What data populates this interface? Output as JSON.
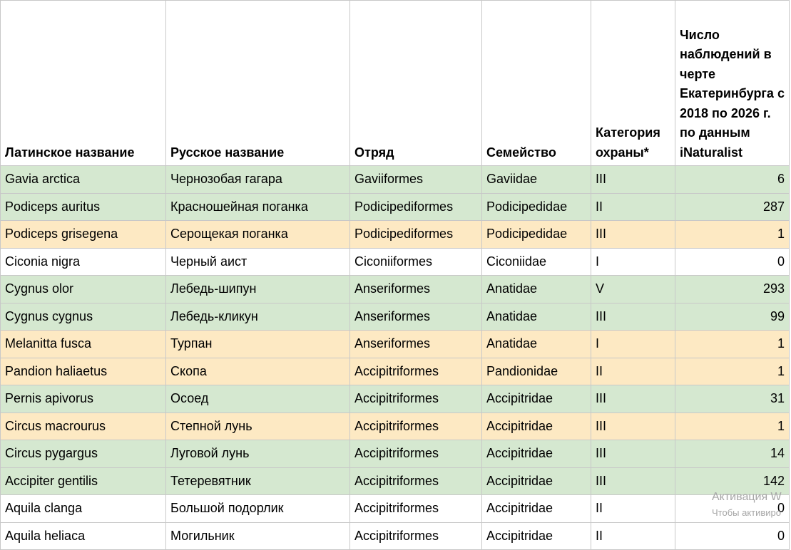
{
  "table": {
    "columns": [
      "Латинское название",
      "Русское название",
      "Отряд",
      "Семейство",
      "Категория охраны*",
      "Число наблюдений в черте Екатеринбурга с 2018 по 2026 г. по данным iNaturalist"
    ],
    "rows": [
      [
        "Gavia arctica",
        "Чернозобая гагара",
        "Gaviiformes",
        "Gaviidae",
        "III",
        6
      ],
      [
        "Podiceps auritus",
        "Красношейная поганка",
        "Podicipediformes",
        "Podicipedidae",
        "II",
        287
      ],
      [
        "Podiceps grisegena",
        "Серощекая поганка",
        "Podicipediformes",
        "Podicipedidae",
        "III",
        1
      ],
      [
        "Ciconia nigra",
        "Черный аист",
        "Ciconiiformes",
        "Ciconiidae",
        "I",
        0
      ],
      [
        "Cygnus olor",
        "Лебедь-шипун",
        "Anseriformes",
        "Anatidae",
        "V",
        293
      ],
      [
        "Cygnus cygnus",
        "Лебедь-кликун",
        "Anseriformes",
        "Anatidae",
        "III",
        99
      ],
      [
        "Melanitta fusca",
        "Турпан",
        "Anseriformes",
        "Anatidae",
        "I",
        1
      ],
      [
        "Pandion haliaetus",
        "Скопа",
        "Accipitriformes",
        "Pandionidae",
        "II",
        1
      ],
      [
        "Pernis apivorus",
        "Осоед",
        "Accipitriformes",
        "Accipitridae",
        "III",
        31
      ],
      [
        "Circus macrourus",
        "Степной лунь",
        "Accipitriformes",
        "Accipitridae",
        "III",
        1
      ],
      [
        "Circus pygargus",
        "Луговой лунь",
        "Accipitriformes",
        "Accipitridae",
        "III",
        14
      ],
      [
        "Accipiter gentilis",
        "Тетеревятник",
        "Accipitriformes",
        "Accipitridae",
        "III",
        142
      ],
      [
        "Aquila clanga",
        "Большой подорлик",
        "Accipitriformes",
        "Accipitridae",
        "II",
        0
      ],
      [
        "Aquila heliaca",
        "Могильник",
        "Accipitriformes",
        "Accipitridae",
        "II",
        0
      ]
    ],
    "row_colors": [
      "#d5e8d0",
      "#d5e8d0",
      "#fde9c3",
      "#ffffff",
      "#d5e8d0",
      "#d5e8d0",
      "#fde9c3",
      "#fde9c3",
      "#d5e8d0",
      "#fde9c3",
      "#d5e8d0",
      "#d5e8d0",
      "#ffffff",
      "#ffffff"
    ]
  },
  "watermark": {
    "title": "Активация W",
    "subtitle": "Чтобы активиро"
  }
}
